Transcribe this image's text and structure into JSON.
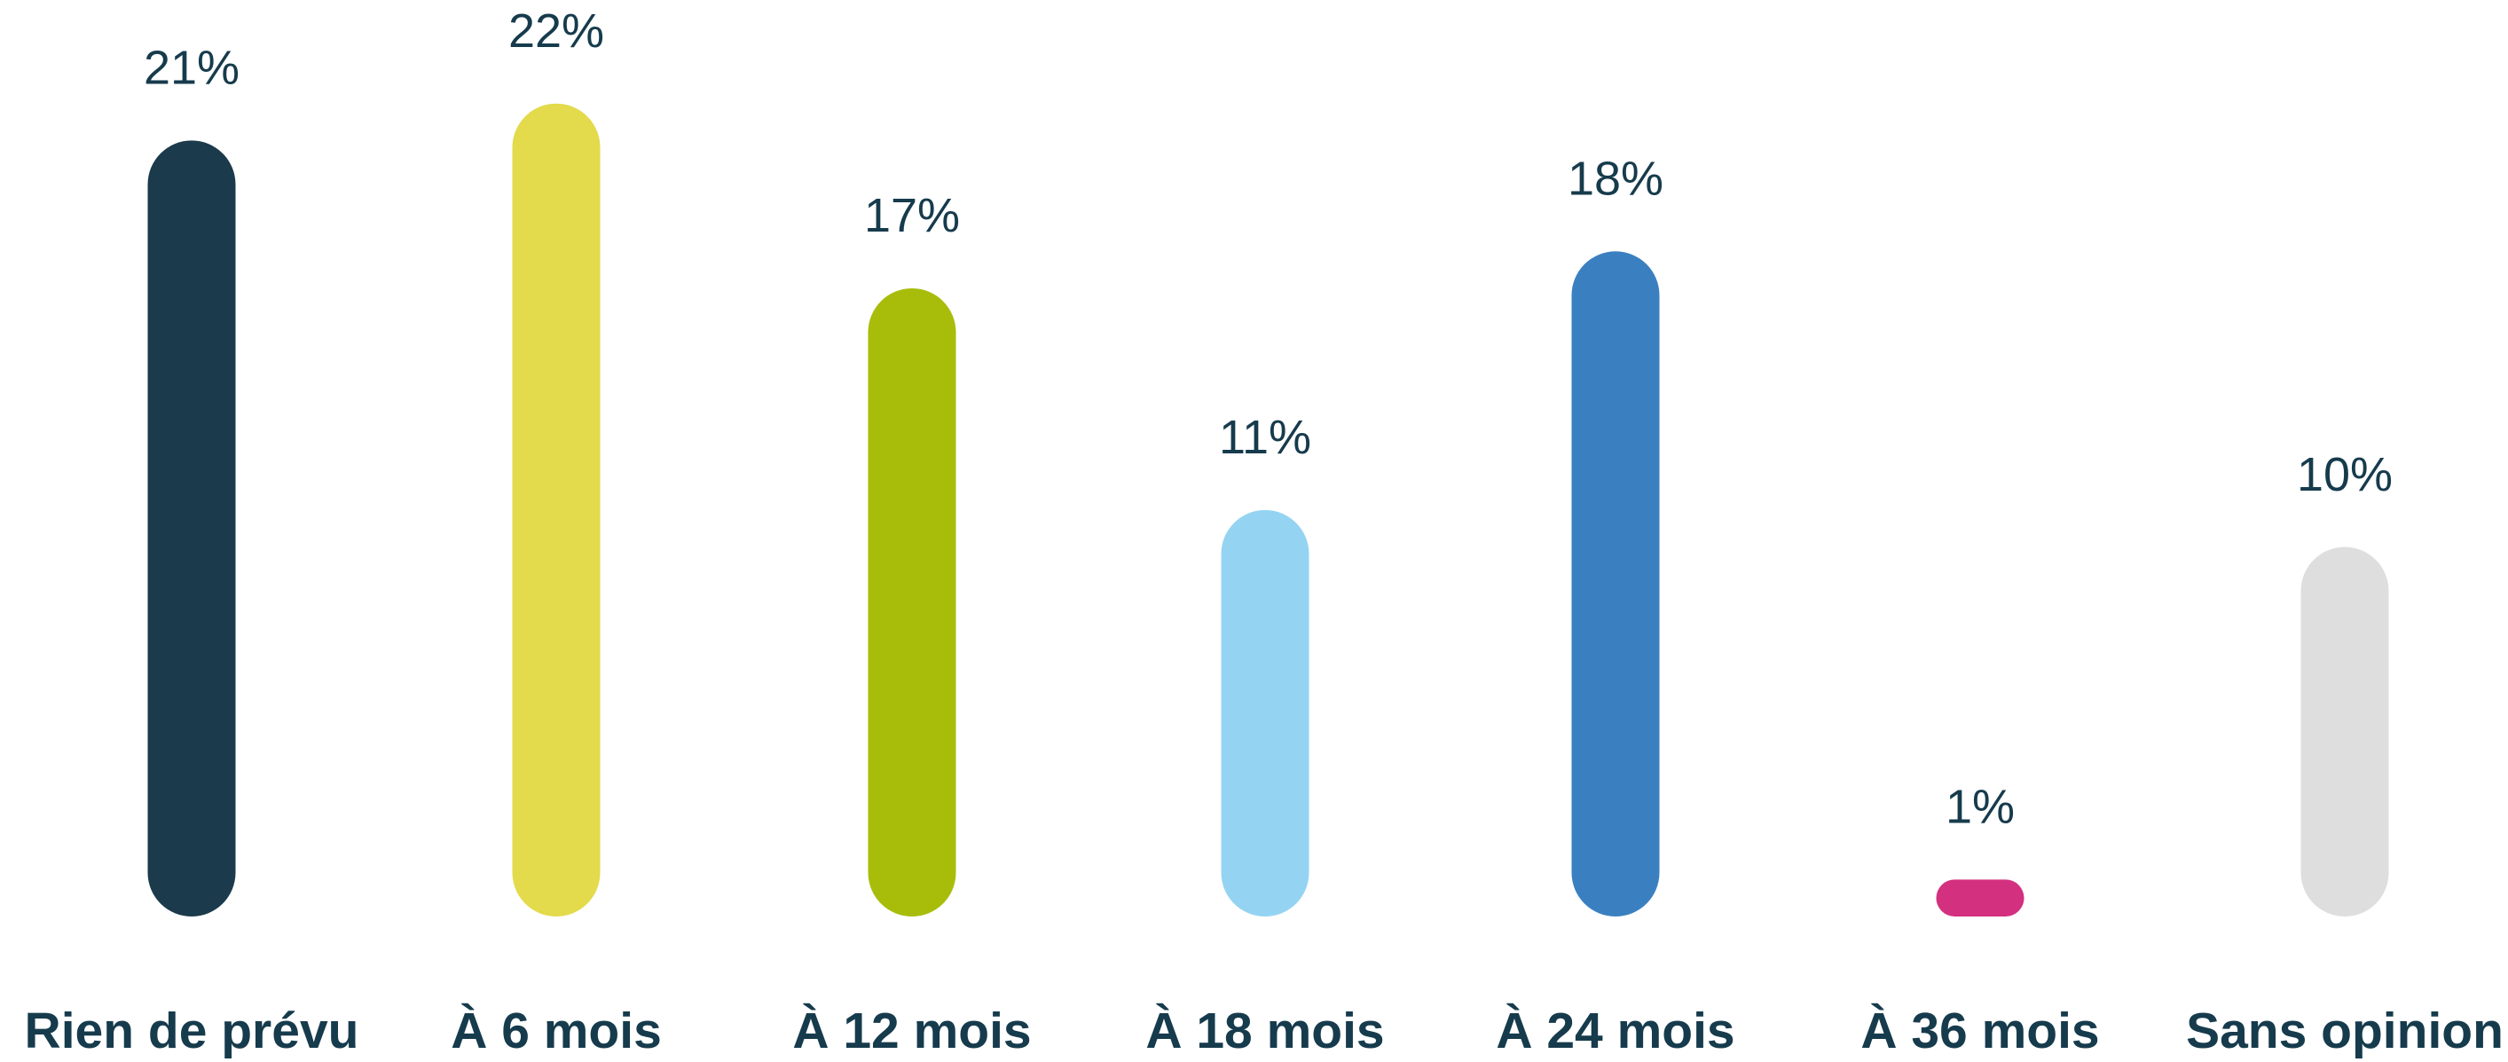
{
  "chart_data": {
    "type": "bar",
    "categories": [
      "Rien de prévu",
      "À 6 mois",
      "À 12 mois",
      "À 18 mois",
      "À 24 mois",
      "À 36 mois",
      "Sans opinion"
    ],
    "values": [
      21,
      22,
      17,
      11,
      18,
      1,
      10
    ],
    "value_labels": [
      "21%",
      "22%",
      "17%",
      "11%",
      "18%",
      "1%",
      "10%"
    ],
    "colors": [
      "#1b3a4b",
      "#e3da4c",
      "#a8bd0a",
      "#94d4f2",
      "#3a80c1",
      "#d3307f",
      "#dedede"
    ]
  }
}
